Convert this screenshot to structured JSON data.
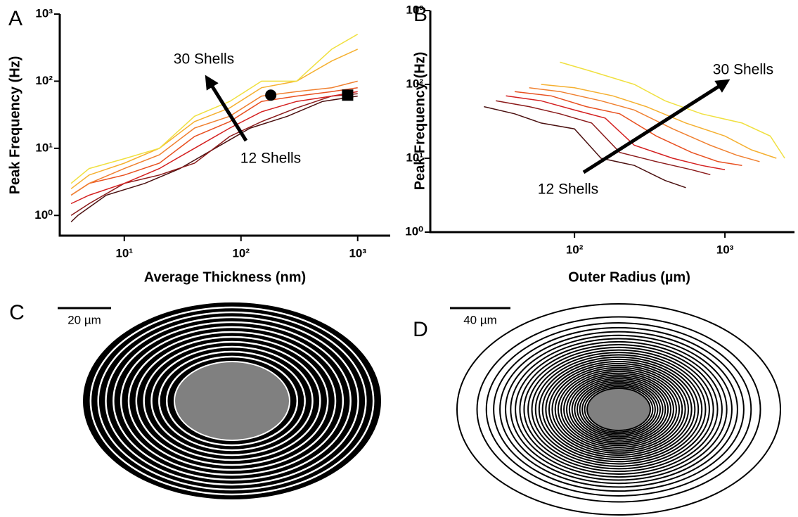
{
  "chart_data": [
    {
      "type": "line",
      "panel_label": "A",
      "x_label": "Average Thickness (nm)",
      "y_label": "Peak Frequency (Hz)",
      "log_x": true,
      "log_y": true,
      "xlim": [
        2.8,
        1900
      ],
      "ylim": [
        0.5,
        1000
      ],
      "xticks": [
        {
          "value": 10,
          "label": "10¹"
        },
        {
          "value": 100,
          "label": "10²"
        },
        {
          "value": 1000,
          "label": "10³"
        }
      ],
      "yticks": [
        {
          "value": 1,
          "label": "10⁰"
        },
        {
          "value": 10,
          "label": "10¹"
        },
        {
          "value": 100,
          "label": "10²"
        },
        {
          "value": 1000,
          "label": "10³"
        }
      ],
      "series": [
        {
          "color": "#4a1010",
          "x": [
            3.5,
            4,
            7,
            15,
            30,
            60,
            120,
            250,
            500,
            1000
          ],
          "values": [
            0.8,
            1,
            2,
            3,
            5,
            10,
            20,
            30,
            50,
            60
          ]
        },
        {
          "color": "#8b1a1a",
          "x": [
            3.5,
            5,
            10,
            20,
            40,
            80,
            150,
            300,
            600,
            1000
          ],
          "values": [
            1,
            1.5,
            3,
            4,
            6,
            15,
            25,
            40,
            60,
            65
          ]
        },
        {
          "color": "#d42020",
          "x": [
            3.5,
            5,
            10,
            20,
            40,
            80,
            150,
            300,
            600,
            1000
          ],
          "values": [
            1.5,
            2,
            3,
            5,
            10,
            20,
            35,
            50,
            60,
            70
          ]
        },
        {
          "color": "#e85020",
          "x": [
            3.5,
            5,
            10,
            20,
            40,
            80,
            150,
            300,
            600,
            1000
          ],
          "values": [
            2,
            3,
            4,
            6,
            15,
            25,
            50,
            60,
            70,
            80
          ]
        },
        {
          "color": "#f08030",
          "x": [
            3.5,
            5,
            10,
            20,
            40,
            80,
            150,
            300,
            600,
            1000
          ],
          "values": [
            2,
            3,
            5,
            8,
            20,
            30,
            60,
            70,
            80,
            100
          ]
        },
        {
          "color": "#f5b030",
          "x": [
            3.5,
            5,
            10,
            20,
            40,
            80,
            150,
            300,
            600,
            1000
          ],
          "values": [
            2.5,
            4,
            6,
            10,
            25,
            40,
            80,
            100,
            200,
            300
          ]
        },
        {
          "color": "#f0e040",
          "x": [
            3.5,
            5,
            10,
            20,
            40,
            80,
            150,
            300,
            600,
            1000
          ],
          "values": [
            3,
            5,
            7,
            10,
            30,
            50,
            100,
            100,
            300,
            500
          ]
        }
      ],
      "markers": [
        {
          "shape": "circle",
          "x": 180,
          "y": 62
        },
        {
          "shape": "square",
          "x": 820,
          "y": 62
        }
      ],
      "annotations": [
        {
          "text": "30 Shells"
        },
        {
          "text": "12 Shells"
        }
      ]
    },
    {
      "type": "line",
      "panel_label": "B",
      "x_label": "Outer Radius (µm)",
      "y_label": "Peak Frequency (Hz)",
      "log_x": true,
      "log_y": true,
      "xlim": [
        11,
        2900
      ],
      "ylim": [
        1,
        1000
      ],
      "xticks": [
        {
          "value": 100,
          "label": "10²"
        },
        {
          "value": 1000,
          "label": "10³"
        }
      ],
      "yticks": [
        {
          "value": 1,
          "label": "10⁰"
        },
        {
          "value": 10,
          "label": "10¹"
        },
        {
          "value": 100,
          "label": "10²"
        },
        {
          "value": 1000,
          "label": "10³"
        }
      ],
      "series": [
        {
          "color": "#4a1010",
          "x": [
            25,
            40,
            60,
            100,
            150,
            250,
            400,
            550
          ],
          "values": [
            50,
            40,
            30,
            25,
            10,
            8,
            5,
            4
          ]
        },
        {
          "color": "#8b1a1a",
          "x": [
            30,
            50,
            80,
            130,
            200,
            350,
            600,
            800
          ],
          "values": [
            60,
            50,
            40,
            30,
            12,
            9,
            7,
            6
          ]
        },
        {
          "color": "#d42020",
          "x": [
            35,
            60,
            100,
            160,
            250,
            450,
            700,
            1000
          ],
          "values": [
            70,
            60,
            45,
            35,
            15,
            10,
            8,
            7
          ]
        },
        {
          "color": "#e85020",
          "x": [
            40,
            70,
            120,
            200,
            350,
            600,
            900,
            1300
          ],
          "values": [
            80,
            70,
            50,
            40,
            20,
            12,
            9,
            8
          ]
        },
        {
          "color": "#f08030",
          "x": [
            50,
            80,
            150,
            250,
            450,
            800,
            1200,
            1700
          ],
          "values": [
            90,
            80,
            60,
            45,
            25,
            15,
            11,
            9
          ]
        },
        {
          "color": "#f5b030",
          "x": [
            60,
            100,
            180,
            300,
            550,
            1000,
            1500,
            2200
          ],
          "values": [
            100,
            90,
            70,
            50,
            30,
            20,
            13,
            10
          ]
        },
        {
          "color": "#f0e040",
          "x": [
            80,
            130,
            250,
            400,
            700,
            1300,
            2000,
            2500
          ],
          "values": [
            200,
            150,
            100,
            60,
            40,
            30,
            20,
            10
          ]
        }
      ],
      "annotations": [
        {
          "text": "30 Shells"
        },
        {
          "text": "12 Shells"
        }
      ]
    }
  ],
  "diagrams": [
    {
      "panel_label": "C",
      "scale_bar": "20 µm",
      "shells": 12
    },
    {
      "panel_label": "D",
      "scale_bar": "40 µm",
      "shells": 30
    }
  ]
}
